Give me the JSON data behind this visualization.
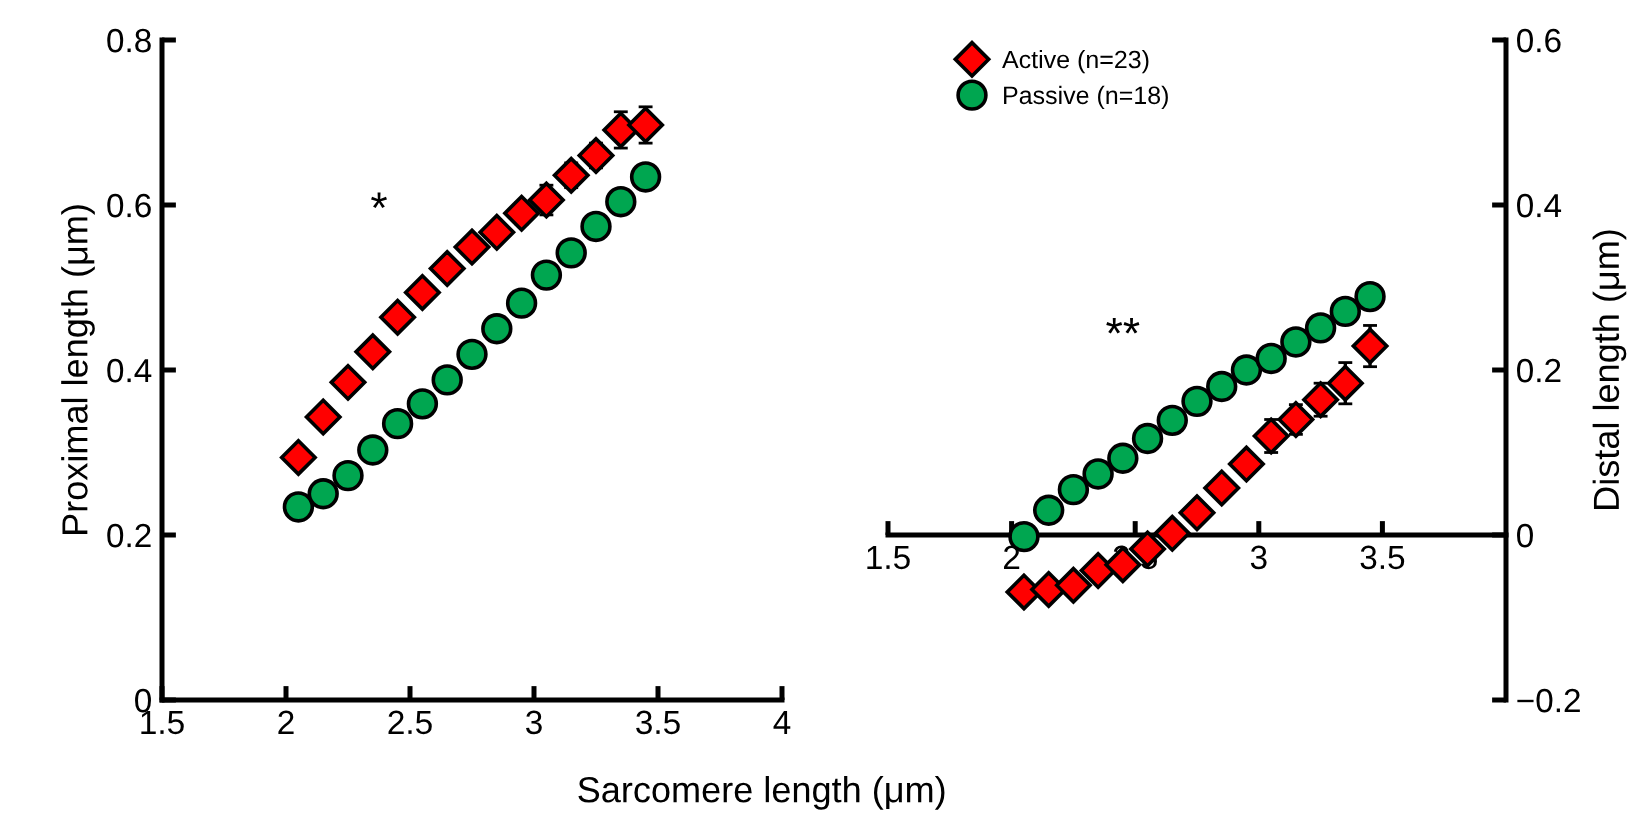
{
  "chart_data": [
    {
      "type": "scatter",
      "xlabel": "Sarcomere length (μm)",
      "ylabel": "Proximal length (μm)",
      "x": [
        2.05,
        2.15,
        2.25,
        2.35,
        2.45,
        2.55,
        2.65,
        2.75,
        2.85,
        2.95,
        3.05,
        3.15,
        3.25,
        3.35,
        3.45
      ],
      "series": [
        {
          "name": "Active (n=23)",
          "color": "#ff0000",
          "marker": "diamond",
          "values": [
            0.294,
            0.343,
            0.385,
            0.422,
            0.464,
            0.494,
            0.523,
            0.549,
            0.567,
            0.59,
            0.606,
            0.636,
            0.66,
            0.691,
            0.697
          ],
          "errors": [
            null,
            null,
            null,
            null,
            null,
            null,
            null,
            null,
            0.012,
            0.013,
            0.018,
            0.015,
            0.015,
            0.022,
            0.022
          ]
        },
        {
          "name": "Passive (n=18)",
          "color": "#00a650",
          "marker": "circle",
          "values": [
            0.234,
            0.25,
            0.272,
            0.303,
            0.335,
            0.359,
            0.388,
            0.419,
            0.45,
            0.481,
            0.515,
            0.542,
            0.574,
            0.604,
            0.634
          ]
        }
      ],
      "xlim": [
        1.5,
        4
      ],
      "xticks": [
        1.5,
        2,
        2.5,
        3,
        3.5,
        4
      ],
      "ylim": [
        0,
        0.8
      ],
      "yticks": [
        0,
        0.2,
        0.4,
        0.6,
        0.8
      ],
      "annotations": [
        "*"
      ],
      "legend": "top right",
      "grid": false
    },
    {
      "type": "scatter",
      "y2label": "Distal length (μm)",
      "x": [
        2.05,
        2.15,
        2.25,
        2.35,
        2.45,
        2.55,
        2.65,
        2.75,
        2.85,
        2.95,
        3.05,
        3.15,
        3.25,
        3.35,
        3.45
      ],
      "series": [
        {
          "color": "#ff0000",
          "marker": "diamond",
          "axis": "y2",
          "values": [
            -0.069,
            -0.066,
            -0.061,
            -0.043,
            -0.036,
            -0.017,
            0.002,
            0.027,
            0.057,
            0.086,
            0.12,
            0.14,
            0.164,
            0.184,
            0.229
          ],
          "errors": [
            null,
            null,
            null,
            null,
            null,
            null,
            null,
            null,
            null,
            0.012,
            0.02,
            0.018,
            0.02,
            0.025,
            0.025
          ]
        },
        {
          "color": "#00a650",
          "marker": "circle",
          "axis": "y2",
          "values": [
            -0.002,
            0.03,
            0.055,
            0.074,
            0.093,
            0.117,
            0.139,
            0.162,
            0.18,
            0.2,
            0.214,
            0.234,
            0.251,
            0.271,
            0.289
          ]
        }
      ],
      "xlim": [
        1.5,
        4
      ],
      "xticks": [
        1.5,
        2,
        2.5,
        3,
        3.5
      ],
      "y2lim": [
        -0.2,
        0.6
      ],
      "y2ticks": [
        {
          "value": -0.2,
          "label": "−0.2"
        },
        0,
        0.2,
        0.4,
        0.6
      ],
      "annotations": [
        "**"
      ],
      "grid": false
    }
  ]
}
